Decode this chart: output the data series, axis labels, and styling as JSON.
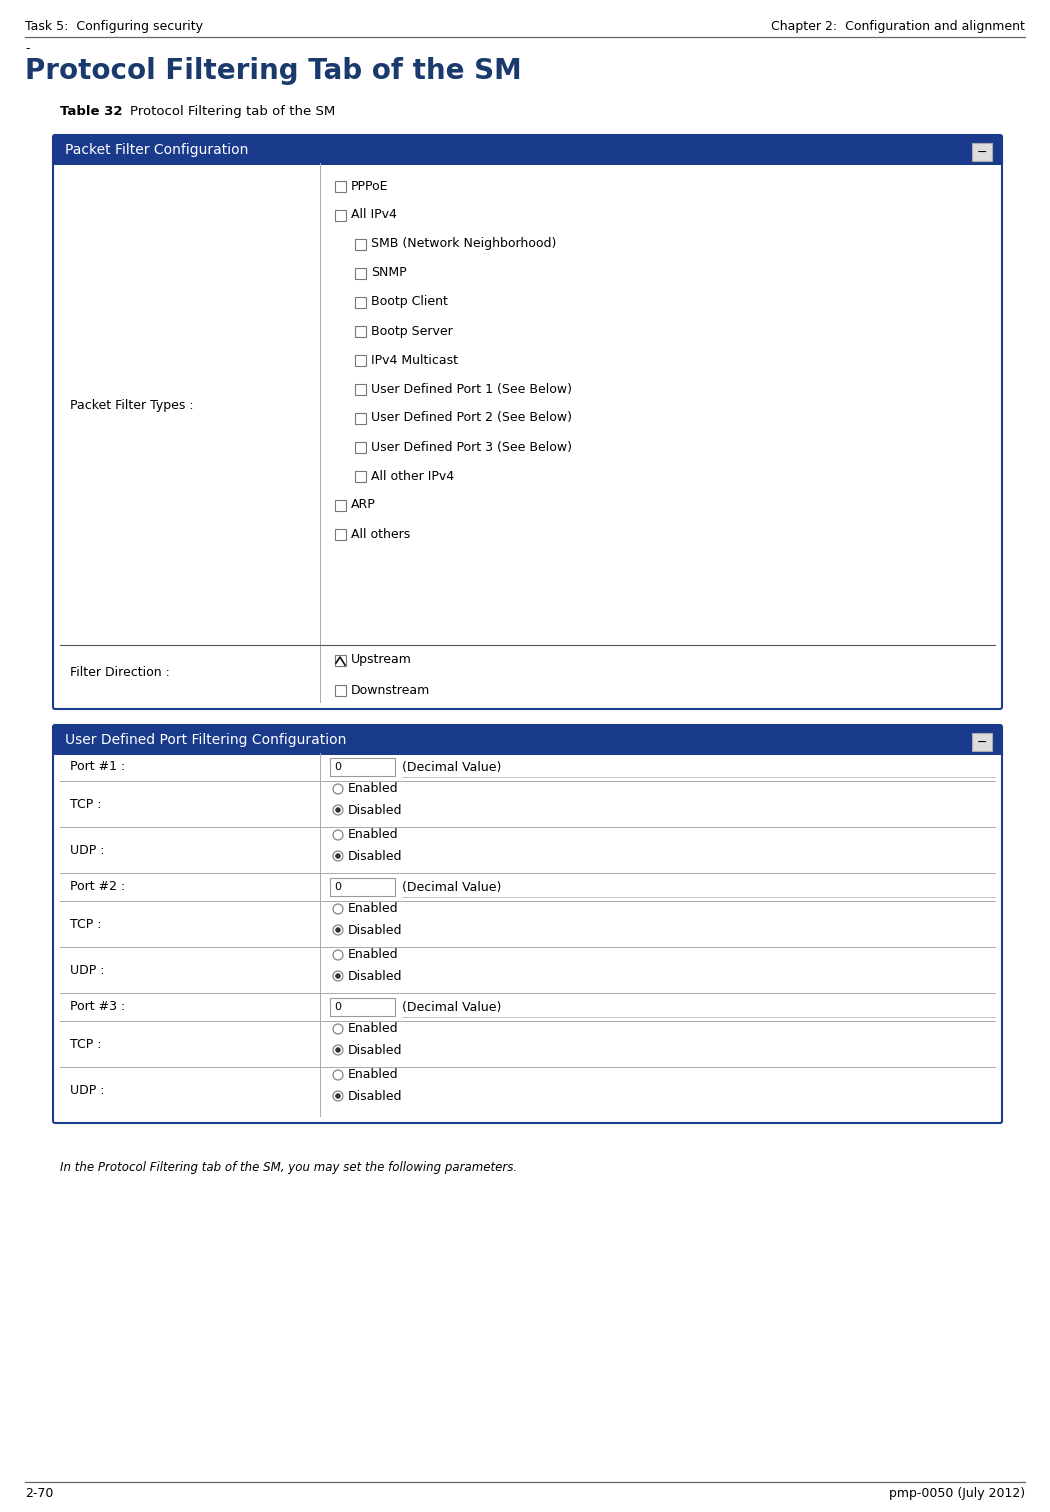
{
  "header_left": "Task 5:  Configuring security",
  "header_right": "Chapter 2:  Configuration and alignment",
  "section_title": "Protocol Filtering Tab of the SM",
  "table_label": "Table 32",
  "table_caption": "Protocol Filtering tab of the SM",
  "section_title_color": "#1a3a6e",
  "header_bg_color": "#1a3a8c",
  "header_text_color": "#ffffff",
  "panel1_title": "Packet Filter Configuration",
  "panel2_title": "User Defined Port Filtering Configuration",
  "packet_filter_row_label": "Packet Filter Types :",
  "filter_direction_label": "Filter Direction :",
  "packet_filter_items": [
    "PPPoE",
    "All IPv4",
    "SMB (Network Neighborhood)",
    "SNMP",
    "Bootp Client",
    "Bootp Server",
    "IPv4 Multicast",
    "User Defined Port 1 (See Below)",
    "User Defined Port 2 (See Below)",
    "User Defined Port 3 (See Below)",
    "All other IPv4",
    "ARP",
    "All others"
  ],
  "packet_filter_indent": [
    0,
    0,
    1,
    1,
    1,
    1,
    1,
    1,
    1,
    1,
    1,
    0,
    0
  ],
  "filter_direction_items": [
    "Upstream",
    "Downstream"
  ],
  "filter_direction_checked": [
    true,
    false
  ],
  "port_rows": [
    {
      "label": "Port #1 :",
      "type": "port",
      "value": "0",
      "suffix": "(Decimal Value)"
    },
    {
      "label": "TCP :",
      "type": "radio",
      "options": [
        "Enabled",
        "Disabled"
      ],
      "selected": 1
    },
    {
      "label": "UDP :",
      "type": "radio",
      "options": [
        "Enabled",
        "Disabled"
      ],
      "selected": 1
    },
    {
      "label": "Port #2 :",
      "type": "port",
      "value": "0",
      "suffix": "(Decimal Value)"
    },
    {
      "label": "TCP :",
      "type": "radio",
      "options": [
        "Enabled",
        "Disabled"
      ],
      "selected": 1
    },
    {
      "label": "UDP :",
      "type": "radio",
      "options": [
        "Enabled",
        "Disabled"
      ],
      "selected": 1
    },
    {
      "label": "Port #3 :",
      "type": "port",
      "value": "0",
      "suffix": "(Decimal Value)"
    },
    {
      "label": "TCP :",
      "type": "radio",
      "options": [
        "Enabled",
        "Disabled"
      ],
      "selected": 1
    },
    {
      "label": "UDP :",
      "type": "radio",
      "options": [
        "Enabled",
        "Disabled"
      ],
      "selected": 1
    }
  ],
  "footer_left": "2-70",
  "footer_right": "pmp-0050 (July 2012)",
  "footnote": "In the Protocol Filtering tab of the SM, you may set the following parameters.",
  "bg_color": "#ffffff",
  "separator_color": "#666666",
  "panel_border_color": "#1a3a8c",
  "row_separator_color": "#aaaaaa",
  "text_color": "#000000"
}
